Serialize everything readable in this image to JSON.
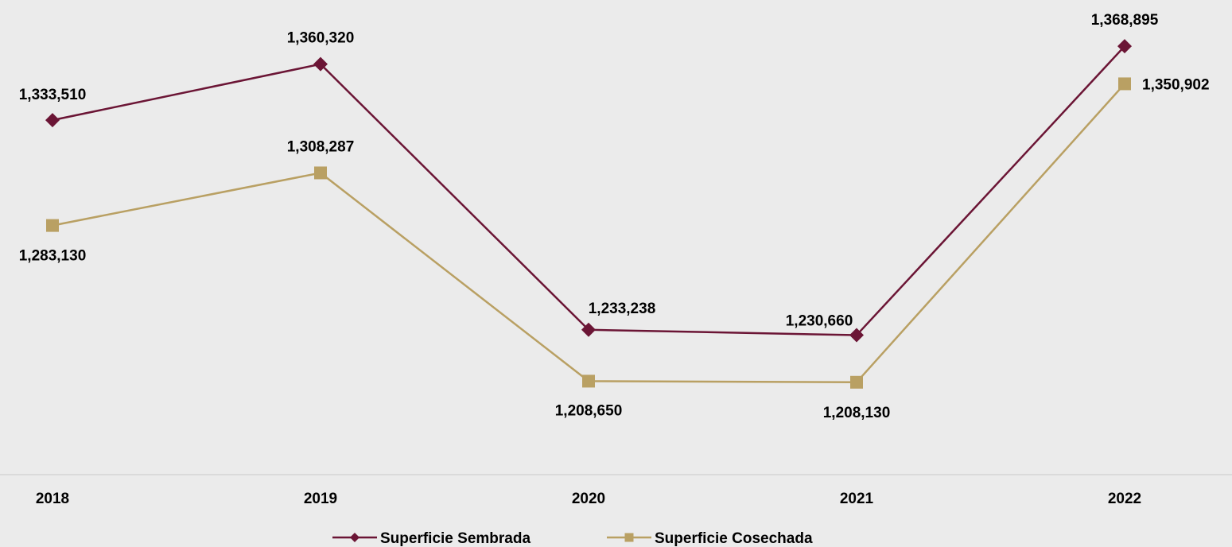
{
  "chart_data": {
    "type": "line",
    "categories": [
      "2018",
      "2019",
      "2020",
      "2021",
      "2022"
    ],
    "series": [
      {
        "name": "Superficie Sembrada",
        "values": [
          1333510,
          1360320,
          1233238,
          1230660,
          1368895
        ],
        "value_labels": [
          "1,333,510",
          "1,360,320",
          "1,233,238",
          "1,230,660",
          "1,368,895"
        ],
        "color": "#6b1535",
        "marker": "diamond"
      },
      {
        "name": "Superficie Cosechada",
        "values": [
          1283130,
          1308287,
          1208650,
          1208130,
          1350902
        ],
        "value_labels": [
          "1,283,130",
          "1,308,287",
          "1,208,650",
          "1,208,130",
          "1,350,902"
        ],
        "color": "#b9a063",
        "marker": "square"
      }
    ],
    "ylim": [
      1178000,
      1391000
    ],
    "grid": false,
    "legend_position": "bottom",
    "background": "#ebebeb"
  }
}
